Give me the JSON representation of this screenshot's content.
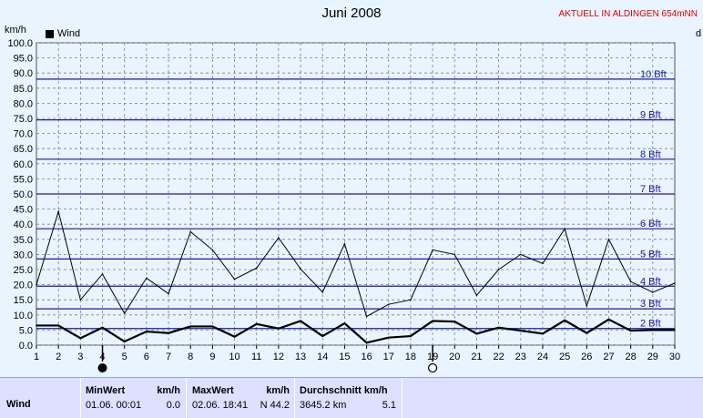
{
  "header": {
    "title": "Juni 2008",
    "aktuell": "AKTUELL IN ALDINGEN 654mNN",
    "unit_left": "km/h",
    "unit_right": "d"
  },
  "legend": {
    "label": "Wind",
    "color": "#000000"
  },
  "colors": {
    "background": "#e8f4ff",
    "bft_line": "#1a1aa0",
    "grid": "#808080",
    "series": "#000000",
    "table": "#dde0ff"
  },
  "chart_data": {
    "type": "line",
    "title": "Juni 2008",
    "ylabel": "km/h",
    "x": [
      1,
      2,
      3,
      4,
      5,
      6,
      7,
      8,
      9,
      10,
      11,
      12,
      13,
      14,
      15,
      16,
      17,
      18,
      19,
      20,
      21,
      22,
      23,
      24,
      25,
      26,
      27,
      28,
      29,
      30
    ],
    "xlim": [
      1,
      30
    ],
    "ylim": [
      0,
      100
    ],
    "y_ticks": [
      "0.0",
      "5.0",
      "10.0",
      "15.0",
      "20.0",
      "25.0",
      "30.0",
      "35.0",
      "40.0",
      "45.0",
      "50.0",
      "55.0",
      "60.0",
      "65.0",
      "70.0",
      "75.0",
      "80.0",
      "85.0",
      "90.0",
      "95.0",
      "100.0"
    ],
    "grid": true,
    "legend_position": "top-left",
    "series": [
      {
        "name": "Wind",
        "style": "thick",
        "values": [
          6.5,
          6.5,
          2.3,
          5.8,
          1.2,
          4.5,
          4.0,
          6.2,
          6.2,
          2.8,
          7.0,
          5.5,
          8.0,
          3.0,
          7.2,
          0.8,
          2.5,
          3.0,
          8.0,
          7.8,
          3.8,
          5.8,
          4.8,
          3.8,
          8.2,
          4.0,
          8.5,
          4.8,
          5.0,
          5.0
        ]
      },
      {
        "name": "",
        "style": "thin",
        "values": [
          20.0,
          44.2,
          15.0,
          23.5,
          10.5,
          22.2,
          17.0,
          37.5,
          31.5,
          21.8,
          25.5,
          35.5,
          25.2,
          17.5,
          33.5,
          9.5,
          13.5,
          15.0,
          31.5,
          30.0,
          16.5,
          25.0,
          30.0,
          27.0,
          38.5,
          13.0,
          35.0,
          21.0,
          17.5,
          20.5
        ]
      }
    ],
    "beaufort_lines": [
      {
        "label": "2 Bft",
        "value": 5.5
      },
      {
        "label": "3 Bft",
        "value": 12.0
      },
      {
        "label": "4 Bft",
        "value": 19.5
      },
      {
        "label": "5 Bft",
        "value": 28.5
      },
      {
        "label": "6 Bft",
        "value": 38.5
      },
      {
        "label": "7 Bft",
        "value": 50.0
      },
      {
        "label": "8 Bft",
        "value": 61.5
      },
      {
        "label": "9 Bft",
        "value": 74.5
      },
      {
        "label": "10 Bft",
        "value": 88.0
      }
    ],
    "moon_markers": [
      {
        "day": 4,
        "phase": "full"
      },
      {
        "day": 19,
        "phase": "new"
      }
    ]
  },
  "table": {
    "row_label": "Wind",
    "min_header": "MinWert",
    "min_unit": "km/h",
    "min_time": "01.06.  00:01",
    "min_value": "0.0",
    "max_header": "MaxWert",
    "max_unit": "km/h",
    "max_time": "02.06.  18:41",
    "max_value": "N 44.2",
    "avg_header": "Durchschnitt km/h",
    "avg_km": "3645.2 km",
    "avg_value": "5.1"
  }
}
